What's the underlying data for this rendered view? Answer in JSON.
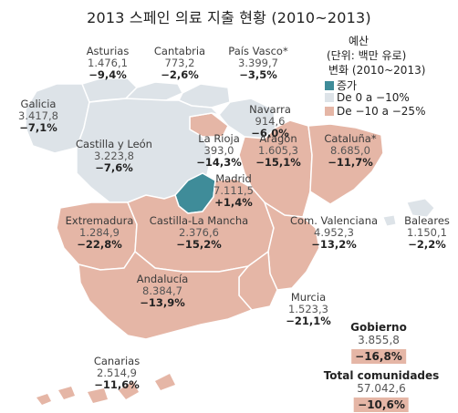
{
  "title": "2013 스페인 의료 지출 현황 (2010~2013)",
  "legend": {
    "line1": "예산",
    "line2": "(단위: 백만 유로)",
    "line3": "변화 (2010~2013)",
    "items": [
      {
        "label": "증가",
        "color": "#3f8c99"
      },
      {
        "label": "De 0 a −10%",
        "color": "#dde3e8"
      },
      {
        "label": "De −10 a −25%",
        "color": "#e5b6a6"
      }
    ]
  },
  "regions": [
    {
      "name": "Asturias",
      "value": "1.476,1",
      "change": "−9,4%",
      "color": "#dde3e8"
    },
    {
      "name": "Cantabria",
      "value": "773,2",
      "change": "−2,6%",
      "color": "#dde3e8"
    },
    {
      "name": "País Vasco*",
      "value": "3.399,7",
      "change": "−3,5%",
      "color": "#dde3e8"
    },
    {
      "name": "Galicia",
      "value": "3.417,8",
      "change": "−7,1%",
      "color": "#dde3e8"
    },
    {
      "name": "Navarra",
      "value": "914,6",
      "change": "−6,0%",
      "color": "#dde3e8"
    },
    {
      "name": "La Rioja",
      "value": "393,0",
      "change": "−14,3%",
      "color": "#e5b6a6"
    },
    {
      "name": "Castilla y León",
      "value": "3.223,8",
      "change": "−7,6%",
      "color": "#dde3e8"
    },
    {
      "name": "Aragón",
      "value": "1.605,3",
      "change": "−15,1%",
      "color": "#e5b6a6"
    },
    {
      "name": "Cataluña*",
      "value": "8.685,0",
      "change": "−11,7%",
      "color": "#e5b6a6"
    },
    {
      "name": "Madrid",
      "value": "7.111,5",
      "change": "+1,4%",
      "color": "#3f8c99"
    },
    {
      "name": "Extremadura",
      "value": "1.284,9",
      "change": "−22,8%",
      "color": "#e5b6a6"
    },
    {
      "name": "Castilla-La Mancha",
      "value": "2.376,6",
      "change": "−15,2%",
      "color": "#e5b6a6"
    },
    {
      "name": "Com. Valenciana",
      "value": "4.952,3",
      "change": "−13,2%",
      "color": "#e5b6a6"
    },
    {
      "name": "Baleares",
      "value": "1.150,1",
      "change": "−2,2%",
      "color": "#dde3e8"
    },
    {
      "name": "Andalucía",
      "value": "8.384,7",
      "change": "−13,9%",
      "color": "#e5b6a6"
    },
    {
      "name": "Murcia",
      "value": "1.523,3",
      "change": "−21,1%",
      "color": "#e5b6a6"
    },
    {
      "name": "Canarias",
      "value": "2.514,9",
      "change": "−11,6%",
      "color": "#e5b6a6"
    }
  ],
  "totals": [
    {
      "name": "Gobierno",
      "value": "3.855,8",
      "change": "−16,8%"
    },
    {
      "name": "Total comunidades",
      "value": "57.042,6",
      "change": "−10,6%"
    }
  ]
}
